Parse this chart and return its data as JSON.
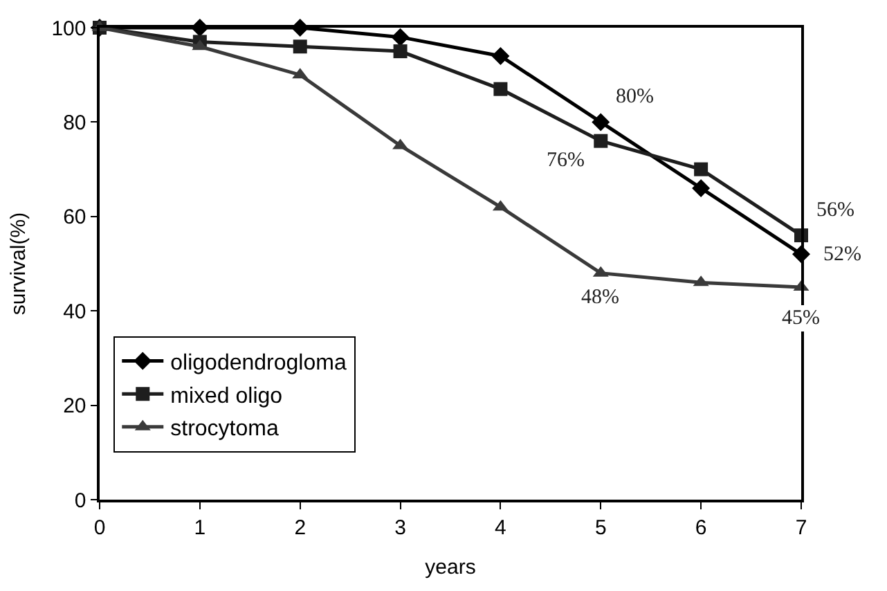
{
  "chart_data": {
    "type": "line",
    "xlabel": "years",
    "ylabel": "survival(%)",
    "x": [
      0,
      1,
      2,
      3,
      4,
      5,
      6,
      7
    ],
    "series": [
      {
        "name": "oligodendrogloma",
        "color": "#000000",
        "marker": "diamond",
        "values": [
          100,
          100,
          100,
          98,
          94,
          80,
          66,
          52
        ],
        "value_labels": [
          null,
          null,
          null,
          null,
          null,
          "80%",
          null,
          "52%"
        ]
      },
      {
        "name": "mixed oligo",
        "color": "#1e1e1e",
        "marker": "square",
        "values": [
          100,
          97,
          96,
          95,
          87,
          76,
          70,
          56
        ],
        "value_labels": [
          null,
          null,
          null,
          null,
          null,
          "76%",
          null,
          "56%"
        ]
      },
      {
        "name": "strocytoma",
        "color": "#3a3a3a",
        "marker": "triangle",
        "values": [
          100,
          96,
          90,
          75,
          62,
          48,
          46,
          45
        ],
        "value_labels": [
          null,
          null,
          null,
          null,
          null,
          "48%",
          null,
          "45%"
        ]
      }
    ],
    "xlim": [
      0,
      7
    ],
    "xticks": [
      0,
      1,
      2,
      3,
      4,
      5,
      6,
      7
    ],
    "ylim": [
      0,
      100
    ],
    "yticks": [
      0,
      20,
      40,
      60,
      80,
      100
    ],
    "legend": "bottom left",
    "line_style": "solid"
  }
}
